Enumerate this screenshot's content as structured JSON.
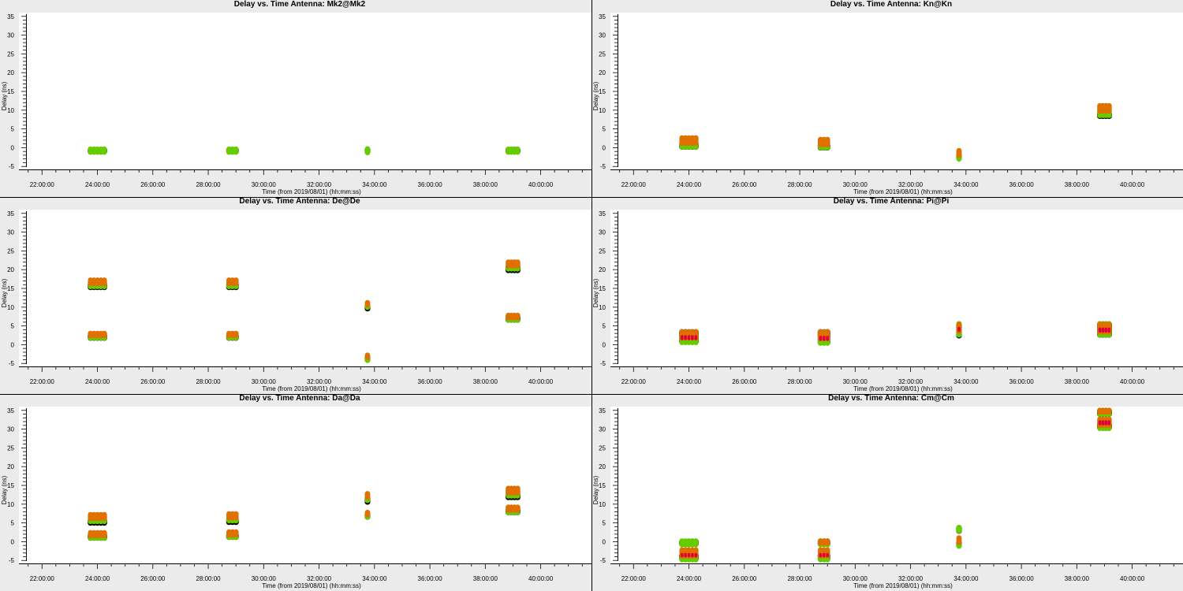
{
  "colors": {
    "black": "#000000",
    "green": "#66cc00",
    "orange": "#e07000",
    "red": "#e0003c",
    "background": "#ebebeb"
  },
  "chart_data": [
    {
      "type": "scatter",
      "title": "Delay vs. Time Antenna: Mk2@Mk2",
      "xlabel": "Time (from 2019/08/01) (hh:mm:ss)",
      "ylabel": "Delay (ns)",
      "xlim": [
        "21:10:00",
        "41:50:00"
      ],
      "ylim": [
        -6,
        36
      ],
      "x_ticks": [
        "22:00:00",
        "24:00:00",
        "26:00:00",
        "28:00:00",
        "30:00:00",
        "32:00:00",
        "34:00:00",
        "36:00:00",
        "38:00:00",
        "40:00:00"
      ],
      "y_ticks": [
        -5,
        0,
        5,
        10,
        15,
        20,
        25,
        30,
        35
      ],
      "clusters": [
        {
          "t0": "23:45:00",
          "t1": "24:15:00",
          "black": [
            -1.0,
            -0.6
          ],
          "green": [
            -1.2,
            -0.4
          ]
        },
        {
          "t0": "28:45:00",
          "t1": "29:00:00",
          "black": [
            -1.0,
            -0.6
          ],
          "green": [
            -1.2,
            -0.4
          ]
        },
        {
          "t0": "33:45:00",
          "t1": "33:45:00",
          "black": [
            -1.0,
            -0.6
          ],
          "green": [
            -1.3,
            -0.3
          ]
        },
        {
          "t0": "38:50:00",
          "t1": "39:10:00",
          "black": [
            -1.0,
            -0.6
          ],
          "green": [
            -1.2,
            -0.4
          ]
        }
      ]
    },
    {
      "type": "scatter",
      "title": "Delay vs. Time Antenna: Kn@Kn",
      "xlabel": "Time (from 2019/08/01) (hh:mm:ss)",
      "ylabel": "Delay (ns)",
      "xlim": [
        "21:10:00",
        "41:50:00"
      ],
      "ylim": [
        -6,
        36
      ],
      "x_ticks": [
        "22:00:00",
        "24:00:00",
        "26:00:00",
        "28:00:00",
        "30:00:00",
        "32:00:00",
        "34:00:00",
        "36:00:00",
        "38:00:00",
        "40:00:00"
      ],
      "y_ticks": [
        -5,
        0,
        5,
        10,
        15,
        20,
        25,
        30,
        35
      ],
      "clusters": [
        {
          "t0": "23:45:00",
          "t1": "24:15:00",
          "black": [
            0.2,
            0.8
          ],
          "green": [
            0.2,
            1.2
          ],
          "orange": [
            1.2,
            2.6
          ]
        },
        {
          "t0": "28:45:00",
          "t1": "29:00:00",
          "black": [
            0.0,
            0.6
          ],
          "green": [
            0.0,
            1.0
          ],
          "orange": [
            0.8,
            2.2
          ]
        },
        {
          "t0": "33:45:00",
          "t1": "33:45:00",
          "black": [
            -2.8,
            -2.0
          ],
          "green": [
            -3.0,
            -2.2
          ],
          "orange": [
            -2.0,
            -0.8
          ]
        },
        {
          "t0": "38:50:00",
          "t1": "39:10:00",
          "black": [
            8.4,
            9.0
          ],
          "green": [
            8.6,
            9.6
          ],
          "orange": [
            9.8,
            11.2
          ]
        }
      ]
    },
    {
      "type": "scatter",
      "title": "Delay vs. Time Antenna: De@De",
      "xlabel": "Time (from 2019/08/01) (hh:mm:ss)",
      "ylabel": "Delay (ns)",
      "xlim": [
        "21:10:00",
        "41:50:00"
      ],
      "ylim": [
        -6,
        36
      ],
      "x_ticks": [
        "22:00:00",
        "24:00:00",
        "26:00:00",
        "28:00:00",
        "30:00:00",
        "32:00:00",
        "34:00:00",
        "36:00:00",
        "38:00:00",
        "40:00:00"
      ],
      "y_ticks": [
        -5,
        0,
        5,
        10,
        15,
        20,
        25,
        30,
        35
      ],
      "clusters": [
        {
          "t0": "23:45:00",
          "t1": "24:15:00",
          "black": [
            15.3,
            15.9
          ],
          "green": [
            15.5,
            16.5
          ],
          "orange": [
            16.3,
            17.2
          ]
        },
        {
          "t0": "23:45:00",
          "t1": "24:15:00",
          "black": [
            1.8,
            2.4
          ],
          "green": [
            1.8,
            2.6
          ],
          "orange": [
            2.4,
            3.0
          ]
        },
        {
          "t0": "28:45:00",
          "t1": "29:00:00",
          "black": [
            15.3,
            15.9
          ],
          "green": [
            15.5,
            16.5
          ],
          "orange": [
            16.3,
            17.2
          ]
        },
        {
          "t0": "28:45:00",
          "t1": "29:00:00",
          "black": [
            1.8,
            2.4
          ],
          "green": [
            1.8,
            2.6
          ],
          "orange": [
            2.4,
            3.0
          ]
        },
        {
          "t0": "33:45:00",
          "t1": "33:45:00",
          "black": [
            9.6,
            10.2
          ],
          "green": [
            10.0,
            10.8
          ],
          "orange": [
            10.6,
            11.2
          ]
        },
        {
          "t0": "33:45:00",
          "t1": "33:45:00",
          "black": [
            -4.0,
            -3.4
          ],
          "green": [
            -4.2,
            -3.4
          ],
          "orange": [
            -3.4,
            -2.8
          ]
        },
        {
          "t0": "38:50:00",
          "t1": "39:10:00",
          "black": [
            19.8,
            20.6
          ],
          "green": [
            20.2,
            21.2
          ],
          "orange": [
            21.0,
            22.0
          ]
        },
        {
          "t0": "38:50:00",
          "t1": "39:10:00",
          "black": [
            6.6,
            7.2
          ],
          "green": [
            6.6,
            7.4
          ],
          "orange": [
            7.2,
            7.8
          ]
        }
      ]
    },
    {
      "type": "scatter",
      "title": "Delay vs. Time Antenna: Pi@Pi",
      "xlabel": "Time (from 2019/08/01) (hh:mm:ss)",
      "ylabel": "Delay (ns)",
      "xlim": [
        "21:10:00",
        "41:50:00"
      ],
      "ylim": [
        -6,
        36
      ],
      "x_ticks": [
        "22:00:00",
        "24:00:00",
        "26:00:00",
        "28:00:00",
        "30:00:00",
        "32:00:00",
        "34:00:00",
        "36:00:00",
        "38:00:00",
        "40:00:00"
      ],
      "y_ticks": [
        -5,
        0,
        5,
        10,
        15,
        20,
        25,
        30,
        35
      ],
      "clusters": [
        {
          "t0": "23:45:00",
          "t1": "24:15:00",
          "black": [
            0.8,
            3.4
          ],
          "green": [
            0.6,
            3.4
          ],
          "orange": [
            1.8,
            3.4
          ],
          "red": [
            1.6,
            2.2
          ]
        },
        {
          "t0": "28:45:00",
          "t1": "29:00:00",
          "black": [
            0.6,
            3.4
          ],
          "green": [
            0.4,
            3.4
          ],
          "orange": [
            1.6,
            3.4
          ],
          "red": [
            1.4,
            2.0
          ]
        },
        {
          "t0": "33:45:00",
          "t1": "33:45:00",
          "black": [
            2.4,
            5.2
          ],
          "green": [
            2.6,
            5.6
          ],
          "orange": [
            3.6,
            5.4
          ],
          "red": [
            3.8,
            4.4
          ]
        },
        {
          "t0": "38:50:00",
          "t1": "39:10:00",
          "black": [
            2.6,
            5.4
          ],
          "green": [
            2.6,
            5.6
          ],
          "orange": [
            3.4,
            5.4
          ],
          "red": [
            3.6,
            4.2
          ]
        }
      ]
    },
    {
      "type": "scatter",
      "title": "Delay vs. Time Antenna: Da@Da",
      "xlabel": "Time (from 2019/08/01) (hh:mm:ss)",
      "ylabel": "Delay (ns)",
      "xlim": [
        "21:10:00",
        "41:50:00"
      ],
      "ylim": [
        -6,
        36
      ],
      "x_ticks": [
        "22:00:00",
        "24:00:00",
        "26:00:00",
        "28:00:00",
        "30:00:00",
        "32:00:00",
        "34:00:00",
        "36:00:00",
        "38:00:00",
        "40:00:00"
      ],
      "y_ticks": [
        -5,
        0,
        5,
        10,
        15,
        20,
        25,
        30,
        35
      ],
      "clusters": [
        {
          "t0": "23:45:00",
          "t1": "24:15:00",
          "black": [
            5.0,
            5.6
          ],
          "green": [
            5.4,
            6.6
          ],
          "orange": [
            6.2,
            7.2
          ]
        },
        {
          "t0": "23:45:00",
          "t1": "24:15:00",
          "black": [
            1.0,
            1.6
          ],
          "green": [
            1.0,
            1.8
          ],
          "orange": [
            1.6,
            2.4
          ]
        },
        {
          "t0": "28:45:00",
          "t1": "29:00:00",
          "black": [
            5.2,
            5.8
          ],
          "green": [
            5.6,
            6.6
          ],
          "orange": [
            6.4,
            7.4
          ]
        },
        {
          "t0": "28:45:00",
          "t1": "29:00:00",
          "black": [
            1.2,
            1.8
          ],
          "green": [
            1.2,
            2.0
          ],
          "orange": [
            1.8,
            2.6
          ]
        },
        {
          "t0": "33:45:00",
          "t1": "33:45:00",
          "black": [
            10.6,
            11.4
          ],
          "green": [
            11.0,
            12.0
          ],
          "orange": [
            11.8,
            12.8
          ]
        },
        {
          "t0": "33:45:00",
          "t1": "33:45:00",
          "black": [
            6.6,
            7.2
          ],
          "green": [
            6.6,
            7.4
          ],
          "orange": [
            7.2,
            7.8
          ]
        },
        {
          "t0": "38:50:00",
          "t1": "39:10:00",
          "black": [
            11.8,
            12.4
          ],
          "green": [
            12.2,
            13.2
          ],
          "orange": [
            13.0,
            14.2
          ]
        },
        {
          "t0": "38:50:00",
          "t1": "39:10:00",
          "black": [
            7.8,
            8.4
          ],
          "green": [
            7.8,
            8.6
          ],
          "orange": [
            8.4,
            9.2
          ]
        }
      ]
    },
    {
      "type": "scatter",
      "title": "Delay vs. Time Antenna: Cm@Cm",
      "xlabel": "Time (from 2019/08/01) (hh:mm:ss)",
      "ylabel": "Delay (ns)",
      "xlim": [
        "21:10:00",
        "41:50:00"
      ],
      "ylim": [
        -6,
        36
      ],
      "x_ticks": [
        "22:00:00",
        "24:00:00",
        "26:00:00",
        "28:00:00",
        "30:00:00",
        "32:00:00",
        "34:00:00",
        "36:00:00",
        "38:00:00",
        "40:00:00"
      ],
      "y_ticks": [
        -5,
        0,
        5,
        10,
        15,
        20,
        25,
        30,
        35
      ],
      "clusters": [
        {
          "t0": "23:45:00",
          "t1": "24:15:00",
          "black": [
            -0.6,
            0.0
          ],
          "green": [
            -0.8,
            0.2
          ]
        },
        {
          "t0": "23:45:00",
          "t1": "24:15:00",
          "black": [
            -4.6,
            -3.6
          ],
          "green": [
            -4.8,
            -4.0
          ],
          "orange": [
            -3.8,
            -2.2
          ],
          "red": [
            -3.8,
            -3.4
          ]
        },
        {
          "t0": "28:45:00",
          "t1": "29:00:00",
          "black": [
            -0.6,
            0.0
          ],
          "green": [
            -0.8,
            0.2
          ],
          "orange": [
            -0.4,
            0.2
          ]
        },
        {
          "t0": "28:45:00",
          "t1": "29:00:00",
          "black": [
            -4.6,
            -3.6
          ],
          "green": [
            -4.8,
            -4.0
          ],
          "orange": [
            -3.8,
            -2.2
          ],
          "red": [
            -3.8,
            -3.4
          ]
        },
        {
          "t0": "33:45:00",
          "t1": "33:45:00",
          "black": [
            2.8,
            3.6
          ],
          "green": [
            2.8,
            3.8
          ]
        },
        {
          "t0": "33:45:00",
          "t1": "33:45:00",
          "black": [
            -1.0,
            -0.2
          ],
          "green": [
            -1.2,
            0.0
          ],
          "orange": [
            -0.2,
            1.0
          ]
        },
        {
          "t0": "38:50:00",
          "t1": "39:10:00",
          "black": [
            34.0,
            34.8
          ],
          "green": [
            34.0,
            35.0
          ],
          "orange": [
            34.6,
            35.0
          ]
        },
        {
          "t0": "38:50:00",
          "t1": "39:10:00",
          "black": [
            30.4,
            31.2
          ],
          "green": [
            30.2,
            31.2
          ],
          "orange": [
            31.0,
            32.6
          ],
          "red": [
            31.4,
            32.0
          ]
        }
      ]
    }
  ]
}
